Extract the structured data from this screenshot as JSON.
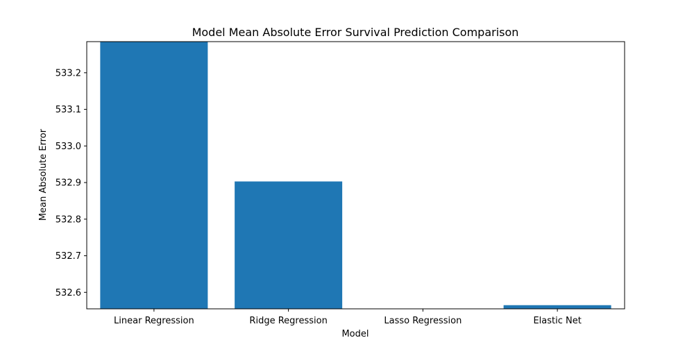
{
  "chart_data": {
    "type": "bar",
    "title": "Model Mean Absolute Error Survival Prediction Comparison",
    "xlabel": "Model",
    "ylabel": "Mean Absolute Error",
    "categories": [
      "Linear Regression",
      "Ridge Regression",
      "Lasso Regression",
      "Elastic Net"
    ],
    "values": [
      533.29,
      532.903,
      532.55,
      532.565
    ],
    "ylim": [
      532.555,
      533.285
    ],
    "yticks": [
      532.6,
      532.7,
      532.8,
      532.9,
      533.0,
      533.1,
      533.2
    ],
    "ytick_labels": [
      "532.6",
      "532.7",
      "532.8",
      "532.9",
      "533.0",
      "533.1",
      "533.2"
    ],
    "bar_color": "#1f77b4",
    "grid": false
  }
}
